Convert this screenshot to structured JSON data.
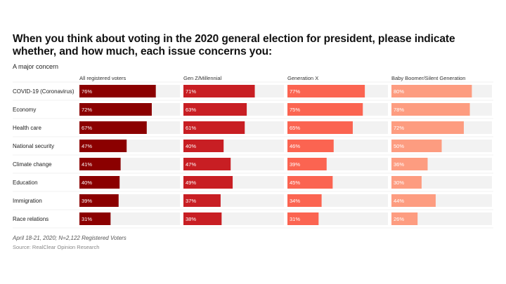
{
  "title": "When you think about voting in the 2020 general election for president, please indicate whether, and how much, each issue concerns you:",
  "subtitle": "A major concern",
  "footnote": "April 18-21, 2020; N=2,122 Registered Voters",
  "source": "Source: RealClear Opinion Research",
  "chart_data": {
    "type": "bar",
    "orientation": "horizontal",
    "layout": "small-multiples",
    "categories": [
      "COVID-19 (Coronavirus)",
      "Economy",
      "Health care",
      "National security",
      "Climate change",
      "Education",
      "Immigration",
      "Race relations"
    ],
    "series": [
      {
        "name": "All registered voters",
        "color": "#8b0000",
        "labels": [
          "76%",
          "72%",
          "67%",
          "47%",
          "41%",
          "40%",
          "39%",
          "31%"
        ],
        "values": [
          76,
          72,
          67,
          47,
          41,
          40,
          39,
          31
        ]
      },
      {
        "name": "Gen Z/Millennial",
        "color": "#c81e23",
        "labels": [
          "71%",
          "63%",
          "61%",
          "40%",
          "47%",
          "49%",
          "37%",
          "38%"
        ],
        "values": [
          71,
          63,
          61,
          40,
          47,
          49,
          37,
          38
        ]
      },
      {
        "name": "Generation X",
        "color": "#fb6451",
        "labels": [
          "77%",
          "75%",
          "65%",
          "46%",
          "39%",
          "45%",
          "34%",
          "31%"
        ],
        "values": [
          77,
          75,
          65,
          46,
          39,
          45,
          34,
          31
        ]
      },
      {
        "name": "Baby Boomer/Silent Generation",
        "color": "#fd9c80",
        "labels": [
          "80%",
          "78%",
          "72%",
          "50%",
          "36%",
          "30%",
          "44%",
          "26%"
        ],
        "values": [
          80,
          78,
          72,
          50,
          36,
          30,
          44,
          26
        ]
      }
    ],
    "xlim": [
      0,
      100
    ],
    "track_color": "#f2f2f2"
  }
}
